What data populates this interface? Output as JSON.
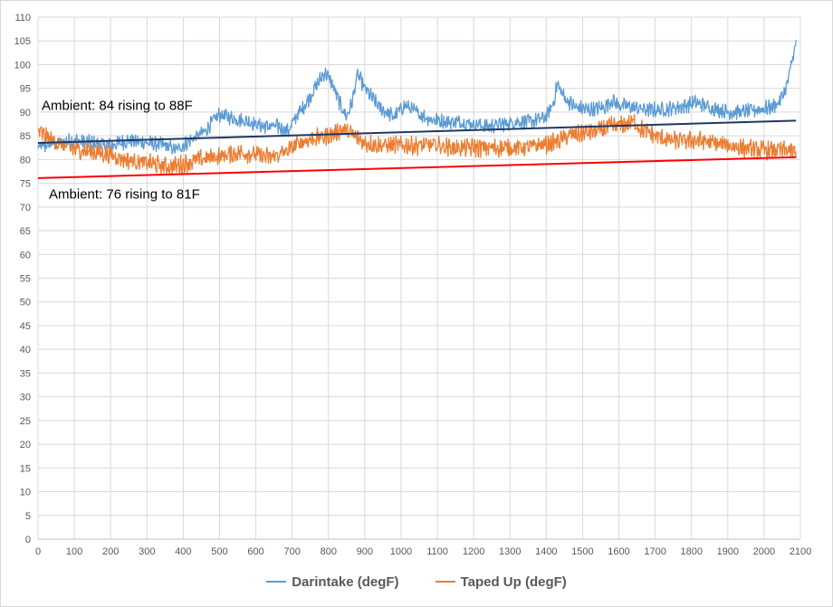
{
  "chart_data": {
    "type": "line",
    "title": "",
    "xlabel": "",
    "ylabel": "",
    "xlim": [
      0,
      2100
    ],
    "ylim": [
      0,
      110
    ],
    "x_ticks": [
      0,
      100,
      200,
      300,
      400,
      500,
      600,
      700,
      800,
      900,
      1000,
      1100,
      1200,
      1300,
      1400,
      1500,
      1600,
      1700,
      1800,
      1900,
      2000,
      2100
    ],
    "y_ticks": [
      0,
      5,
      10,
      15,
      20,
      25,
      30,
      35,
      40,
      45,
      50,
      55,
      60,
      65,
      70,
      75,
      80,
      85,
      90,
      95,
      100,
      105,
      110
    ],
    "grid": true,
    "legend_position": "bottom",
    "series": [
      {
        "name": "Darintake (degF)",
        "color": "#5b9bd5",
        "noise": 1.3,
        "points": [
          [
            0,
            82.5
          ],
          [
            50,
            83.5
          ],
          [
            100,
            84
          ],
          [
            150,
            83.5
          ],
          [
            200,
            83
          ],
          [
            250,
            84
          ],
          [
            300,
            83.5
          ],
          [
            350,
            83
          ],
          [
            380,
            82
          ],
          [
            420,
            84
          ],
          [
            460,
            86
          ],
          [
            480,
            88
          ],
          [
            500,
            89.5
          ],
          [
            520,
            89
          ],
          [
            550,
            88.5
          ],
          [
            580,
            88
          ],
          [
            620,
            87
          ],
          [
            660,
            87
          ],
          [
            690,
            86
          ],
          [
            710,
            89
          ],
          [
            740,
            92
          ],
          [
            770,
            96
          ],
          [
            790,
            98.5
          ],
          [
            810,
            96
          ],
          [
            830,
            92
          ],
          [
            850,
            89
          ],
          [
            865,
            92
          ],
          [
            880,
            98
          ],
          [
            900,
            95
          ],
          [
            940,
            91
          ],
          [
            980,
            89
          ],
          [
            1010,
            91.5
          ],
          [
            1040,
            90
          ],
          [
            1080,
            88.5
          ],
          [
            1120,
            88
          ],
          [
            1160,
            88
          ],
          [
            1200,
            87.5
          ],
          [
            1240,
            87
          ],
          [
            1280,
            87.5
          ],
          [
            1320,
            88
          ],
          [
            1360,
            88
          ],
          [
            1400,
            89
          ],
          [
            1420,
            92
          ],
          [
            1430,
            96
          ],
          [
            1450,
            93
          ],
          [
            1480,
            91
          ],
          [
            1520,
            90.5
          ],
          [
            1560,
            91
          ],
          [
            1580,
            92.5
          ],
          [
            1600,
            91.5
          ],
          [
            1640,
            91
          ],
          [
            1680,
            90.5
          ],
          [
            1720,
            90.5
          ],
          [
            1760,
            91
          ],
          [
            1790,
            91.5
          ],
          [
            1810,
            92
          ],
          [
            1850,
            91
          ],
          [
            1900,
            90
          ],
          [
            1940,
            90
          ],
          [
            1980,
            90.5
          ],
          [
            2020,
            91
          ],
          [
            2040,
            92
          ],
          [
            2060,
            95
          ],
          [
            2070,
            98
          ],
          [
            2080,
            102
          ],
          [
            2088,
            104.5
          ]
        ]
      },
      {
        "name": "Taped Up (degF)",
        "color": "#ed7d31",
        "noise": 1.6,
        "points": [
          [
            0,
            86
          ],
          [
            40,
            84
          ],
          [
            80,
            82.5
          ],
          [
            120,
            82
          ],
          [
            160,
            81.5
          ],
          [
            200,
            81
          ],
          [
            240,
            80
          ],
          [
            280,
            79.5
          ],
          [
            320,
            79
          ],
          [
            360,
            78.5
          ],
          [
            400,
            79
          ],
          [
            440,
            80
          ],
          [
            480,
            80.5
          ],
          [
            520,
            81
          ],
          [
            560,
            81.5
          ],
          [
            600,
            81
          ],
          [
            640,
            80.5
          ],
          [
            680,
            81.5
          ],
          [
            720,
            83.5
          ],
          [
            760,
            84.5
          ],
          [
            800,
            85
          ],
          [
            840,
            86.5
          ],
          [
            860,
            85.5
          ],
          [
            900,
            83.5
          ],
          [
            940,
            83
          ],
          [
            980,
            83
          ],
          [
            1020,
            83
          ],
          [
            1060,
            83
          ],
          [
            1100,
            83
          ],
          [
            1140,
            82.5
          ],
          [
            1180,
            82.5
          ],
          [
            1220,
            82.5
          ],
          [
            1260,
            82.5
          ],
          [
            1300,
            82.5
          ],
          [
            1340,
            82.5
          ],
          [
            1380,
            83
          ],
          [
            1420,
            83.5
          ],
          [
            1460,
            85
          ],
          [
            1500,
            85.5
          ],
          [
            1540,
            86
          ],
          [
            1580,
            87
          ],
          [
            1620,
            87.5
          ],
          [
            1640,
            88
          ],
          [
            1660,
            86.5
          ],
          [
            1700,
            85
          ],
          [
            1740,
            84
          ],
          [
            1780,
            84
          ],
          [
            1820,
            84
          ],
          [
            1860,
            83.5
          ],
          [
            1900,
            83
          ],
          [
            1940,
            82.5
          ],
          [
            1980,
            82
          ],
          [
            2020,
            82
          ],
          [
            2060,
            82
          ],
          [
            2088,
            81.5
          ]
        ]
      }
    ],
    "trendlines": [
      {
        "color": "#1f3864",
        "from": [
          0,
          83.5
        ],
        "to": [
          2088,
          88.2
        ]
      },
      {
        "color": "#ff0000",
        "from": [
          0,
          76.1
        ],
        "to": [
          2088,
          80.5
        ]
      }
    ],
    "annotations": [
      {
        "text": "Ambient: 84 rising to 88F",
        "x": 10,
        "y": 90.5
      },
      {
        "text": "Ambient: 76 rising to 81F",
        "x": 30,
        "y": 71.8
      }
    ]
  }
}
